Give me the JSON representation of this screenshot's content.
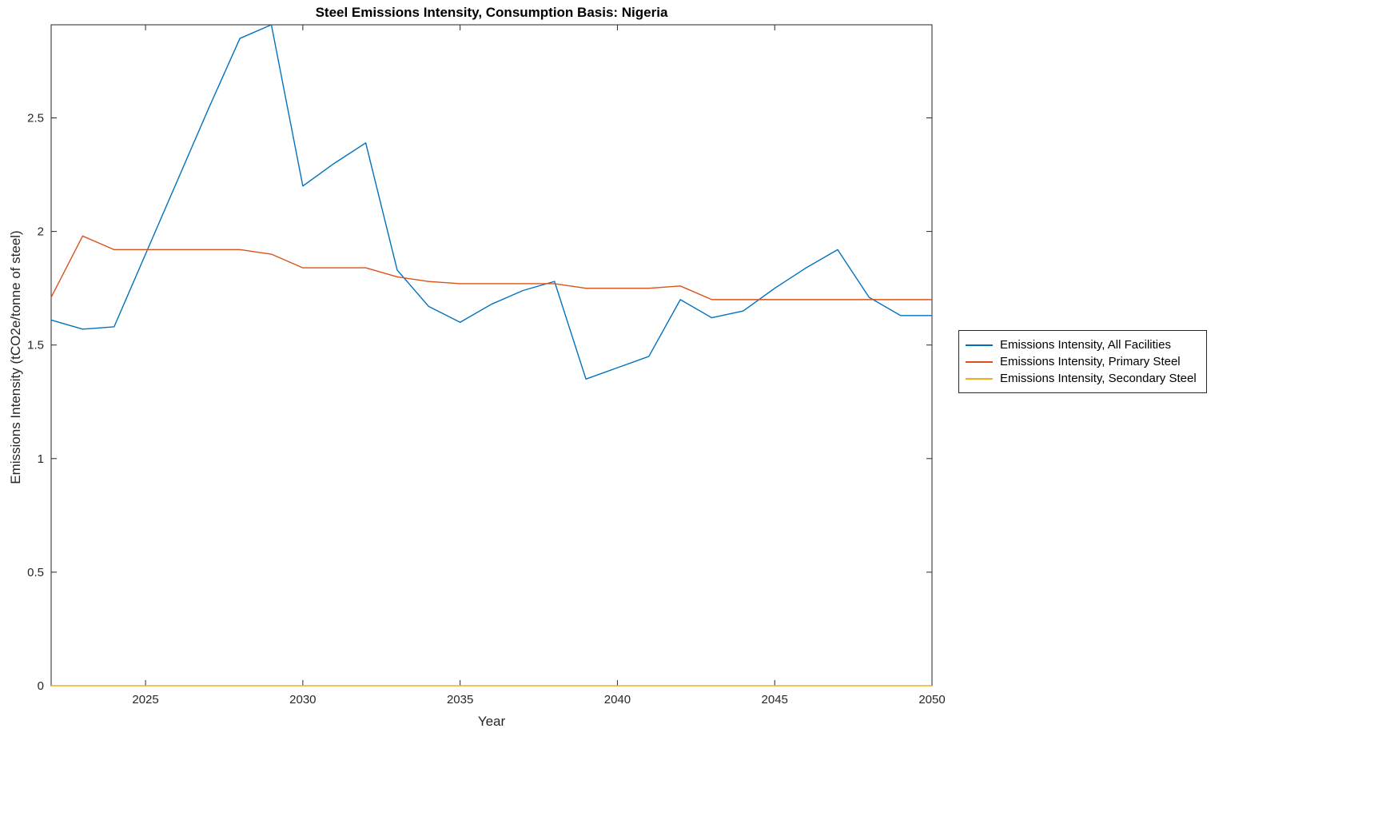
{
  "chart_data": {
    "type": "line",
    "title": "Steel Emissions Intensity, Consumption Basis: Nigeria",
    "xlabel": "Year",
    "ylabel": "Emissions Intensity (tCO2e/tonne of steel)",
    "xlim": [
      2022,
      2050
    ],
    "ylim": [
      0,
      2.91
    ],
    "xticks": [
      2025,
      2030,
      2035,
      2040,
      2045,
      2050
    ],
    "xtick_labels": [
      "2025",
      "2030",
      "2035",
      "2040",
      "2045",
      "2050"
    ],
    "yticks": [
      0,
      0.5,
      1,
      1.5,
      2,
      2.5
    ],
    "ytick_labels": [
      "0",
      "0.5",
      "1",
      "1.5",
      "2",
      "2.5"
    ],
    "grid": false,
    "legend_position": "right-outside",
    "x": [
      2022,
      2023,
      2024,
      2025,
      2026,
      2027,
      2028,
      2029,
      2030,
      2031,
      2032,
      2033,
      2034,
      2035,
      2036,
      2037,
      2038,
      2039,
      2040,
      2041,
      2042,
      2043,
      2044,
      2045,
      2046,
      2047,
      2048,
      2049,
      2050
    ],
    "series": [
      {
        "name": "Emissions Intensity, All Facilities",
        "color": "#0072BD",
        "values": [
          1.61,
          1.57,
          1.58,
          1.9,
          2.22,
          2.54,
          2.85,
          2.91,
          2.2,
          2.3,
          2.39,
          1.83,
          1.67,
          1.6,
          1.68,
          1.74,
          1.78,
          1.35,
          1.4,
          1.45,
          1.7,
          1.62,
          1.65,
          1.75,
          1.84,
          1.92,
          1.71,
          1.63,
          1.63
        ]
      },
      {
        "name": "Emissions Intensity, Primary Steel",
        "color": "#D95319",
        "values": [
          1.71,
          1.98,
          1.92,
          1.92,
          1.92,
          1.92,
          1.92,
          1.9,
          1.84,
          1.84,
          1.84,
          1.8,
          1.78,
          1.77,
          1.77,
          1.77,
          1.77,
          1.75,
          1.75,
          1.75,
          1.76,
          1.7,
          1.7,
          1.7,
          1.7,
          1.7,
          1.7,
          1.7,
          1.7
        ]
      },
      {
        "name": "Emissions Intensity, Secondary Steel",
        "color": "#EDB120",
        "values": [
          0,
          0,
          0,
          0,
          0,
          0,
          0,
          0,
          0,
          0,
          0,
          0,
          0,
          0,
          0,
          0,
          0,
          0,
          0,
          0,
          0,
          0,
          0,
          0,
          0,
          0,
          0,
          0,
          0
        ]
      }
    ],
    "axis_color": "#262626",
    "background_color": "#ffffff"
  }
}
